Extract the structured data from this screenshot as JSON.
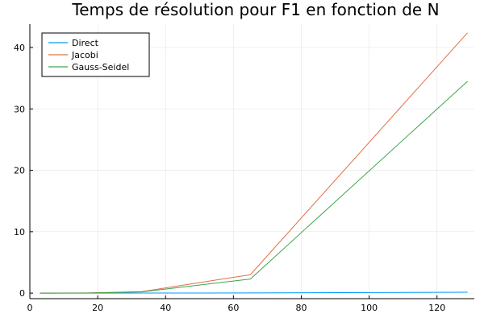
{
  "chart_data": {
    "type": "line",
    "title": "Temps de résolution pour F1 en fonction de N",
    "xlabel": "",
    "ylabel": "",
    "xlim": [
      0,
      131
    ],
    "ylim": [
      -0.9,
      43.8
    ],
    "xticks": [
      0,
      20,
      40,
      60,
      80,
      100,
      120
    ],
    "yticks": [
      0,
      10,
      20,
      30,
      40
    ],
    "grid": true,
    "legend_position": "top-left",
    "x": [
      3,
      17,
      33,
      65,
      129
    ],
    "series": [
      {
        "name": "Direct",
        "color": "#009af9",
        "values": [
          0.0,
          0.0,
          0.01,
          0.03,
          0.15
        ]
      },
      {
        "name": "Jacobi",
        "color": "#e26f46",
        "values": [
          0.0,
          0.03,
          0.25,
          3.0,
          42.4
        ]
      },
      {
        "name": "Gauss-Seidel",
        "color": "#3da44d",
        "values": [
          0.0,
          0.02,
          0.2,
          2.3,
          34.5
        ]
      }
    ]
  }
}
